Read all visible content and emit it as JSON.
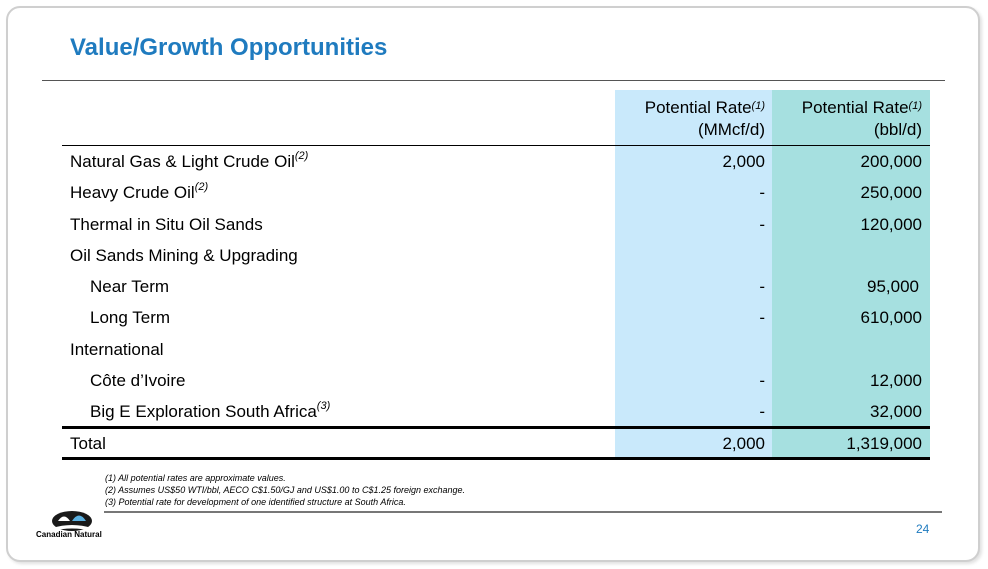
{
  "title": "Value/Growth Opportunities",
  "table": {
    "headers": {
      "col1_line1": "Potential Rate",
      "col1_sup": "(1)",
      "col1_line2": "(MMcf/d)",
      "col2_line1": "Potential Rate",
      "col2_sup": "(1)",
      "col2_line2": "(bbl/d)"
    },
    "rows": [
      {
        "label": "Natural Gas & Light Crude Oil",
        "sup": "(2)",
        "v1": "2,000",
        "v2": "200,000"
      },
      {
        "label": "Heavy Crude Oil",
        "sup": "(2)",
        "v1": "-",
        "v2": "250,000"
      },
      {
        "label": "Thermal in Situ Oil Sands",
        "sup": "",
        "v1": "-",
        "v2": "120,000"
      },
      {
        "label": "Oil Sands Mining & Upgrading",
        "sup": "",
        "v1": "",
        "v2": ""
      },
      {
        "label": "Near Term",
        "sup": "",
        "v1": "-",
        "v2": "95,000"
      },
      {
        "label": "Long Term",
        "sup": "",
        "v1": "-",
        "v2": "610,000"
      },
      {
        "label": "International",
        "sup": "",
        "v1": "",
        "v2": ""
      },
      {
        "label": "Côte d’Ivoire",
        "sup": "",
        "v1": "-",
        "v2": "12,000"
      },
      {
        "label": "Big E Exploration South Africa",
        "sup": "(3)",
        "v1": "-",
        "v2": "32,000"
      }
    ],
    "total": {
      "label": "Total",
      "v1": "2,000",
      "v2": "1,319,000"
    }
  },
  "footnotes": [
    "(1) All potential rates are approximate values.",
    "(2) Assumes US$50 WTI/bbl, AECO C$1.50/GJ and US$1.00 to C$1.25 foreign exchange.",
    "(3) Potential rate for development of one identified structure at South Africa."
  ],
  "page_number": "24",
  "logo": {
    "text": "Canadian Natural",
    "icon": "canadian-natural-logo-icon"
  },
  "colors": {
    "title": "#1f7bbf",
    "column_blue": "#c9e9fb",
    "column_teal": "#a6e0e0"
  }
}
